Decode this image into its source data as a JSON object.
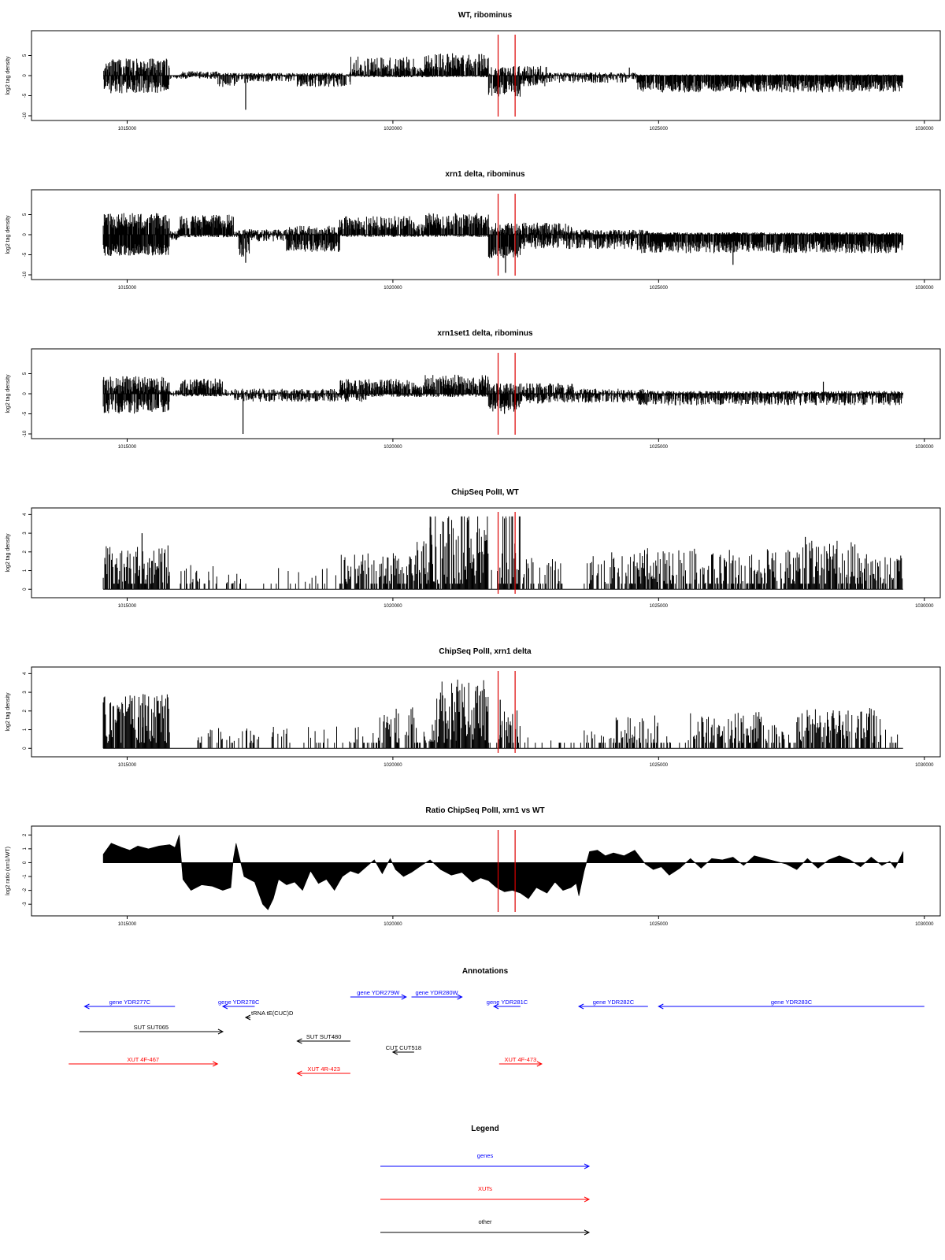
{
  "chart_data": [
    {
      "id": "wt",
      "type": "bar",
      "title": "WT, ribominus",
      "xlabel": "",
      "ylabel": "log2 tag density",
      "xlim": [
        1013200,
        1030300
      ],
      "ylim": [
        -10,
        10
      ],
      "xticks": [
        1015000,
        1020000,
        1025000,
        1030000
      ],
      "yticks": [
        -10,
        -5,
        0,
        5
      ],
      "marker_lines": [
        1021980,
        1022300
      ],
      "plus_strand": [
        [
          1014550,
          1015800,
          1.6,
          2.2
        ],
        [
          1016000,
          1016700,
          0.5,
          0.5
        ],
        [
          1016700,
          1019200,
          0.2,
          0.4
        ],
        [
          1019200,
          1020400,
          2.0,
          2.3
        ],
        [
          1020400,
          1020600,
          1.0,
          1.0
        ],
        [
          1020600,
          1021800,
          2.8,
          2.3
        ],
        [
          1021800,
          1022900,
          0.6,
          1.5
        ],
        [
          1022900,
          1024600,
          0.2,
          0.5
        ],
        [
          1024600,
          1029600,
          0.05,
          0.2
        ]
      ],
      "minus_strand": [
        [
          1014550,
          1015800,
          2.3,
          1.8
        ],
        [
          1015800,
          1016700,
          0.2,
          0.5
        ],
        [
          1016700,
          1017300,
          0.4,
          2.0
        ],
        [
          1017300,
          1018200,
          0.3,
          1.0
        ],
        [
          1018200,
          1019200,
          0.9,
          1.6
        ],
        [
          1019200,
          1021800,
          0.05,
          0.3
        ],
        [
          1021800,
          1022400,
          3.0,
          2.0
        ],
        [
          1022400,
          1022900,
          1.2,
          1.3
        ],
        [
          1022900,
          1024600,
          0.4,
          1.2
        ],
        [
          1024600,
          1029600,
          2.4,
          1.5
        ]
      ],
      "spikes": [
        [
          1017230,
          -8.5
        ],
        [
          1024450,
          2
        ]
      ]
    },
    {
      "id": "xrn1",
      "type": "bar",
      "title": "xrn1 delta, ribominus",
      "xlabel": "",
      "ylabel": "log2 tag density",
      "xlim": [
        1013200,
        1030300
      ],
      "ylim": [
        -10,
        10
      ],
      "xticks": [
        1015000,
        1020000,
        1025000,
        1030000
      ],
      "yticks": [
        -10,
        -5,
        0,
        5
      ],
      "marker_lines": [
        1021980,
        1022300
      ],
      "plus_strand": [
        [
          1014550,
          1015800,
          3.0,
          2.0
        ],
        [
          1015800,
          1016000,
          0.5,
          1.0
        ],
        [
          1016000,
          1017000,
          2.8,
          1.8
        ],
        [
          1017000,
          1018000,
          0.4,
          0.8
        ],
        [
          1018000,
          1019000,
          0.8,
          1.2
        ],
        [
          1019000,
          1020400,
          2.5,
          1.8
        ],
        [
          1020400,
          1020600,
          1.5,
          1.0
        ],
        [
          1020600,
          1021800,
          3.0,
          2.0
        ],
        [
          1021800,
          1023400,
          1.2,
          1.5
        ],
        [
          1023400,
          1024800,
          0.3,
          0.8
        ],
        [
          1024800,
          1029600,
          0.1,
          0.4
        ]
      ],
      "minus_strand": [
        [
          1014550,
          1015800,
          3.5,
          1.5
        ],
        [
          1015800,
          1016000,
          0.5,
          0.8
        ],
        [
          1016000,
          1017100,
          0.2,
          0.4
        ],
        [
          1017100,
          1017300,
          2.5,
          3.0
        ],
        [
          1017300,
          1018000,
          0.5,
          1.0
        ],
        [
          1018000,
          1019000,
          2.5,
          1.5
        ],
        [
          1019000,
          1021800,
          0.1,
          0.4
        ],
        [
          1021800,
          1022400,
          4.2,
          1.6
        ],
        [
          1022400,
          1022900,
          1.8,
          1.5
        ],
        [
          1022900,
          1024600,
          1.8,
          1.5
        ],
        [
          1024600,
          1029600,
          2.8,
          1.5
        ]
      ],
      "spikes": [
        [
          1017230,
          -7
        ],
        [
          1022120,
          -9.5
        ],
        [
          1026400,
          -7.5
        ]
      ]
    },
    {
      "id": "xrn1set1",
      "type": "bar",
      "title": "xrn1set1 delta, ribominus",
      "xlabel": "",
      "ylabel": "log2 tag density",
      "xlim": [
        1013200,
        1030300
      ],
      "ylim": [
        -10,
        10
      ],
      "xticks": [
        1015000,
        1020000,
        1025000,
        1030000
      ],
      "yticks": [
        -10,
        -5,
        0,
        5
      ],
      "marker_lines": [
        1021980,
        1022300
      ],
      "plus_strand": [
        [
          1014550,
          1015800,
          2.0,
          2.0
        ],
        [
          1015800,
          1016000,
          0.3,
          0.5
        ],
        [
          1016000,
          1016800,
          2.0,
          1.5
        ],
        [
          1016800,
          1019000,
          0.3,
          0.8
        ],
        [
          1019000,
          1020400,
          1.8,
          1.6
        ],
        [
          1020400,
          1020600,
          1.0,
          1.0
        ],
        [
          1020600,
          1021800,
          2.5,
          2.0
        ],
        [
          1021800,
          1023400,
          0.8,
          1.5
        ],
        [
          1023400,
          1024800,
          0.3,
          0.8
        ],
        [
          1024800,
          1029600,
          0.1,
          0.5
        ]
      ],
      "minus_strand": [
        [
          1014550,
          1015800,
          2.8,
          1.8
        ],
        [
          1015800,
          1017000,
          0.2,
          0.4
        ],
        [
          1017000,
          1019500,
          0.6,
          1.2
        ],
        [
          1019500,
          1021800,
          0.2,
          0.5
        ],
        [
          1021800,
          1022400,
          2.8,
          1.6
        ],
        [
          1022400,
          1022900,
          1.0,
          1.2
        ],
        [
          1022900,
          1024600,
          0.8,
          1.2
        ],
        [
          1024600,
          1029600,
          1.2,
          1.4
        ]
      ],
      "spikes": [
        [
          1017180,
          -10
        ],
        [
          1022100,
          -5
        ],
        [
          1028100,
          3
        ]
      ]
    },
    {
      "id": "chip_wt",
      "type": "bar",
      "title": "ChipSeq PolII, WT",
      "xlabel": "",
      "ylabel": "log2 tag density",
      "xlim": [
        1013200,
        1030300
      ],
      "ylim": [
        -0.2,
        4.1
      ],
      "xticks": [
        1015000,
        1020000,
        1025000,
        1030000
      ],
      "yticks": [
        0,
        1,
        2,
        3,
        4
      ],
      "marker_lines": [
        1021980,
        1022300
      ],
      "bins": [
        [
          1014550,
          1015800,
          1.1,
          1.3,
          0.9
        ],
        [
          1016000,
          1016700,
          0.6,
          0.8,
          0.35
        ],
        [
          1016700,
          1019000,
          0.3,
          0.9,
          0.25
        ],
        [
          1019000,
          1020400,
          0.8,
          1.2,
          0.75
        ],
        [
          1020400,
          1020800,
          1.2,
          1.4,
          0.9
        ],
        [
          1020700,
          1021800,
          1.9,
          2.6,
          0.95
        ],
        [
          1021800,
          1022000,
          0.3,
          0.8,
          0.2
        ],
        [
          1022000,
          1022400,
          2.4,
          3.0,
          0.95
        ],
        [
          1022400,
          1023200,
          0.7,
          1.0,
          0.45
        ],
        [
          1023200,
          1023600,
          0.0,
          0.0,
          0
        ],
        [
          1023600,
          1024400,
          0.8,
          1.2,
          0.5
        ],
        [
          1024400,
          1027700,
          1.0,
          1.2,
          0.75
        ],
        [
          1027700,
          1028800,
          1.2,
          1.4,
          0.85
        ],
        [
          1028800,
          1029600,
          0.9,
          1.0,
          0.65
        ]
      ],
      "spikes": [
        [
          1015280,
          3.0
        ],
        [
          1020700,
          3.3
        ],
        [
          1021400,
          3.6
        ],
        [
          1022130,
          3.8
        ],
        [
          1027760,
          2.8
        ]
      ]
    },
    {
      "id": "chip_xrn1",
      "type": "bar",
      "title": "ChipSeq PolII, xrn1 delta",
      "xlabel": "",
      "ylabel": "log2 tag density",
      "xlim": [
        1013200,
        1030300
      ],
      "ylim": [
        -0.2,
        4.1
      ],
      "xticks": [
        1015000,
        1020000,
        1025000,
        1030000
      ],
      "yticks": [
        0,
        1,
        2,
        3,
        4
      ],
      "marker_lines": [
        1021980,
        1022300
      ],
      "bins": [
        [
          1014550,
          1015800,
          1.5,
          1.4,
          0.95
        ],
        [
          1015800,
          1016300,
          0.0,
          0.0,
          0
        ],
        [
          1016300,
          1017500,
          0.5,
          0.6,
          0.25
        ],
        [
          1017500,
          1019000,
          0.4,
          0.8,
          0.15
        ],
        [
          1019000,
          1019600,
          0.6,
          0.8,
          0.35
        ],
        [
          1019600,
          1020500,
          1.0,
          1.2,
          0.7
        ],
        [
          1020500,
          1020700,
          0.5,
          0.6,
          0.4
        ],
        [
          1020700,
          1021800,
          2.0,
          1.8,
          0.95
        ],
        [
          1021800,
          1022000,
          0.2,
          0.5,
          0.2
        ],
        [
          1022000,
          1022400,
          1.0,
          1.2,
          0.8
        ],
        [
          1022400,
          1023600,
          0.2,
          0.5,
          0.2
        ],
        [
          1023600,
          1024200,
          0.3,
          0.7,
          0.35
        ],
        [
          1024200,
          1025000,
          0.9,
          1.0,
          0.65
        ],
        [
          1025000,
          1025600,
          0.3,
          0.6,
          0.3
        ],
        [
          1025600,
          1027000,
          1.0,
          1.0,
          0.7
        ],
        [
          1027000,
          1027600,
          0.5,
          0.8,
          0.4
        ],
        [
          1027600,
          1029200,
          1.2,
          1.0,
          0.75
        ],
        [
          1029200,
          1029600,
          0.4,
          0.6,
          0.35
        ]
      ],
      "spikes": [
        [
          1015300,
          2.9
        ],
        [
          1021200,
          3.3
        ],
        [
          1022020,
          2.6
        ],
        [
          1028400,
          2.0
        ]
      ]
    },
    {
      "id": "ratio",
      "type": "area",
      "title": "Ratio ChipSeq PolII, xrn1 vs WT",
      "xlabel": "",
      "ylabel": "log2 ratio (xrn1/WT)",
      "xlim": [
        1013200,
        1030300
      ],
      "ylim": [
        -3.5,
        2.3
      ],
      "xticks": [
        1015000,
        1020000,
        1025000,
        1030000
      ],
      "yticks": [
        -3,
        -2,
        -1,
        0,
        1,
        2
      ],
      "marker_lines": [
        1021980,
        1022300
      ],
      "x": [
        1014550,
        1014700,
        1014900,
        1015050,
        1015200,
        1015400,
        1015600,
        1015800,
        1015900,
        1015980,
        1016050,
        1016200,
        1016400,
        1016600,
        1016800,
        1016950,
        1017000,
        1017050,
        1017200,
        1017400,
        1017550,
        1017650,
        1017750,
        1017850,
        1018000,
        1018150,
        1018300,
        1018450,
        1018600,
        1018750,
        1018900,
        1019050,
        1019200,
        1019350,
        1019500,
        1019650,
        1019800,
        1019950,
        1020050,
        1020200,
        1020350,
        1020500,
        1020700,
        1020900,
        1021100,
        1021300,
        1021500,
        1021650,
        1021800,
        1021950,
        1022100,
        1022250,
        1022400,
        1022550,
        1022700,
        1022900,
        1023050,
        1023200,
        1023350,
        1023450,
        1023500,
        1023600,
        1023700,
        1023850,
        1024000,
        1024150,
        1024350,
        1024550,
        1024750,
        1024900,
        1025050,
        1025200,
        1025400,
        1025600,
        1025800,
        1026000,
        1026200,
        1026400,
        1026600,
        1026800,
        1027000,
        1027200,
        1027400,
        1027600,
        1027800,
        1028000,
        1028200,
        1028400,
        1028600,
        1028800,
        1029000,
        1029200,
        1029350,
        1029450,
        1029600
      ],
      "y": [
        0.6,
        1.4,
        1.1,
        0.9,
        1.2,
        1.0,
        1.2,
        1.3,
        1.1,
        2.0,
        -1.2,
        -2.0,
        -1.6,
        -1.7,
        -2.0,
        -1.8,
        0.3,
        1.4,
        -1.0,
        -1.4,
        -3.0,
        -3.4,
        -2.6,
        -1.2,
        -1.6,
        -1.4,
        -2.0,
        -0.6,
        -1.5,
        -1.2,
        -2.0,
        -1.0,
        -0.6,
        -0.8,
        -0.3,
        0.2,
        -0.8,
        0.3,
        -0.5,
        -1.0,
        -0.7,
        -0.3,
        0.2,
        -0.5,
        -0.9,
        -0.7,
        -1.4,
        -1.1,
        -1.3,
        -1.8,
        -2.1,
        -2.0,
        -2.2,
        -2.6,
        -1.8,
        -2.2,
        -1.4,
        -2.0,
        -1.8,
        -1.5,
        -2.4,
        -0.6,
        0.8,
        0.9,
        0.5,
        0.7,
        0.5,
        0.9,
        -0.1,
        -0.5,
        -0.3,
        -0.9,
        -0.4,
        0.3,
        -0.4,
        0.3,
        0.2,
        0.4,
        -0.2,
        0.5,
        0.3,
        0.1,
        -0.1,
        -0.5,
        0.3,
        -0.4,
        0.2,
        0.5,
        0.2,
        -0.3,
        0.4,
        -0.2,
        0.1,
        -0.4,
        0.8
      ]
    }
  ],
  "annotations": {
    "title": "Annotations",
    "features": [
      {
        "label": "gene YDR277C",
        "start": 1014200,
        "end": 1015900,
        "strand": "-",
        "category": "genes",
        "row": 1
      },
      {
        "label": "gene YDR278C",
        "start": 1016800,
        "end": 1017400,
        "strand": "-",
        "category": "genes",
        "row": 1
      },
      {
        "label": "gene YDR279W",
        "start": 1019200,
        "end": 1020250,
        "strand": "+",
        "category": "genes",
        "row": 0
      },
      {
        "label": "gene YDR280W",
        "start": 1020350,
        "end": 1021300,
        "strand": "+",
        "category": "genes",
        "row": 0
      },
      {
        "label": "gene YDR281C",
        "start": 1021900,
        "end": 1022400,
        "strand": "-",
        "category": "genes",
        "row": 1
      },
      {
        "label": "gene YDR282C",
        "start": 1023500,
        "end": 1024800,
        "strand": "-",
        "category": "genes",
        "row": 1
      },
      {
        "label": "gene YDR283C",
        "start": 1025000,
        "end": 1030000,
        "strand": "-",
        "category": "genes",
        "row": 1
      },
      {
        "label": "tRNA tE(CUC)D",
        "start": 1017230,
        "end": 1017320,
        "strand": "-",
        "category": "other",
        "row": 2
      },
      {
        "label": "SUT SUT065",
        "start": 1014100,
        "end": 1016800,
        "strand": "+",
        "category": "other",
        "row": 3
      },
      {
        "label": "SUT SUT480",
        "start": 1018200,
        "end": 1019200,
        "strand": "-",
        "category": "other",
        "row": 4
      },
      {
        "label": "CUT CUT518",
        "start": 1020000,
        "end": 1020400,
        "strand": "-",
        "category": "other",
        "row": 5
      },
      {
        "label": "XUT 4F-467",
        "start": 1013900,
        "end": 1016700,
        "strand": "+",
        "category": "XUTs",
        "row": 6
      },
      {
        "label": "XUT 4R-423",
        "start": 1018200,
        "end": 1019200,
        "strand": "-",
        "category": "XUTs",
        "row": 7
      },
      {
        "label": "XUT 4F-473",
        "start": 1022000,
        "end": 1022800,
        "strand": "+",
        "category": "XUTs",
        "row": 6
      }
    ]
  },
  "legend": {
    "title": "Legend",
    "items": [
      {
        "label": "genes",
        "color": "#0000ff"
      },
      {
        "label": "XUTs",
        "color": "#ff0000"
      },
      {
        "label": "other",
        "color": "#000000"
      }
    ]
  },
  "colors": {
    "gene": "#0000ff",
    "xut": "#ff0000",
    "other": "#000000",
    "marker": "#dd0000",
    "bars": "#000000",
    "frame": "#000000"
  }
}
